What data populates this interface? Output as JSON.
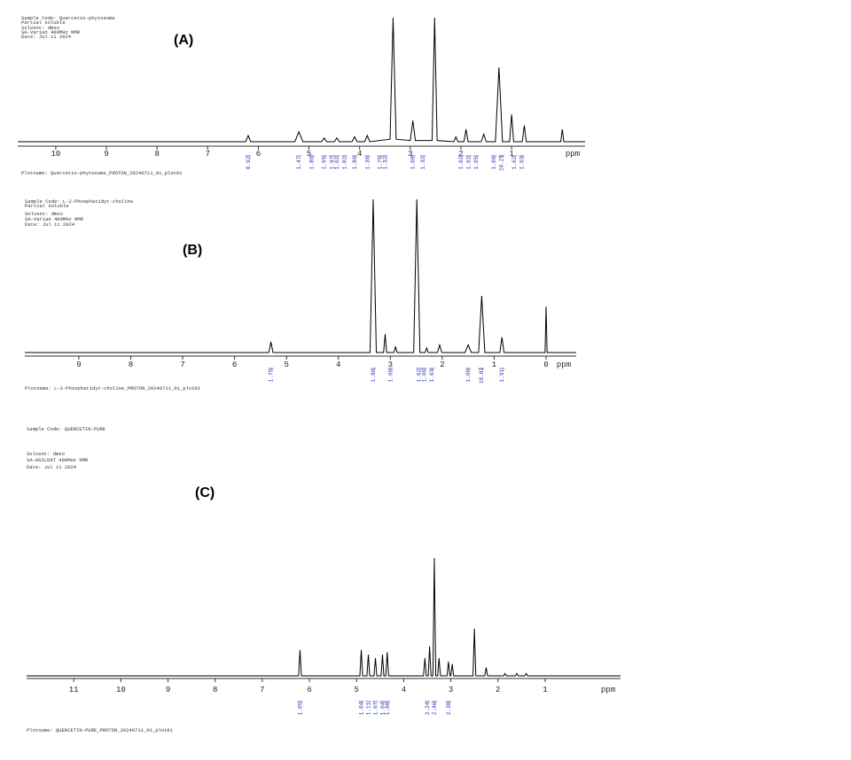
{
  "chart_data": [
    {
      "type": "line",
      "title": "(A)",
      "header": [
        "Sample Code: Quercetin-phytosome",
        "Partial soluble",
        "Solvent: dmso",
        "SA-Varian 400MHz NMR",
        "Date: Jul 11 2024"
      ],
      "footer": "Plotname: Quercetin-phytosome_PROTON_20240711_01_plot01",
      "x_label": "ppm",
      "color": "#000000",
      "xlim": [
        10.75,
        -0.45
      ],
      "ylim": [
        0,
        100
      ],
      "xticks": [
        10,
        9,
        8,
        7,
        6,
        5,
        4,
        3,
        2,
        1
      ],
      "x": [
        10.75,
        6.25,
        6.2,
        6.15,
        5.28,
        5.2,
        5.12,
        4.75,
        4.7,
        4.65,
        4.5,
        4.45,
        4.4,
        4.15,
        4.1,
        4.05,
        3.9,
        3.85,
        3.8,
        3.4,
        3.34,
        3.28,
        3.0,
        2.95,
        2.9,
        2.57,
        2.52,
        2.47,
        2.14,
        2.1,
        2.06,
        1.94,
        1.9,
        1.86,
        1.6,
        1.55,
        1.5,
        1.32,
        1.25,
        1.18,
        1.04,
        1.0,
        0.96,
        0.79,
        0.75,
        0.71,
        0.03,
        0,
        -0.03,
        -0.45
      ],
      "values": [
        0,
        0,
        5,
        0,
        0,
        8,
        0,
        0,
        3,
        0,
        0,
        3,
        0,
        0,
        4,
        0,
        0,
        5,
        0,
        2,
        100,
        2,
        1,
        17,
        1,
        1,
        100,
        1,
        0,
        4,
        0,
        0,
        10,
        0,
        0,
        6,
        0,
        0,
        60,
        0,
        0,
        22,
        0,
        0,
        13,
        0,
        0,
        10,
        0,
        0
      ],
      "integrals": [
        {
          "x": 6.2,
          "label": "0.92"
        },
        {
          "x": 5.2,
          "label": "1.47"
        },
        {
          "x": 4.95,
          "label": "1.86"
        },
        {
          "x": 4.7,
          "label": "1.95"
        },
        {
          "x": 4.55,
          "label": "1.97"
        },
        {
          "x": 4.45,
          "label": "1.02"
        },
        {
          "x": 4.3,
          "label": "1.02"
        },
        {
          "x": 4.1,
          "label": "1.86"
        },
        {
          "x": 3.85,
          "label": "1.36"
        },
        {
          "x": 3.6,
          "label": "1.75"
        },
        {
          "x": 3.5,
          "label": "1.32"
        },
        {
          "x": 2.95,
          "label": "1.00"
        },
        {
          "x": 2.75,
          "label": "1.32"
        },
        {
          "x": 2.0,
          "label": "1.02"
        },
        {
          "x": 1.85,
          "label": "1.02"
        },
        {
          "x": 1.7,
          "label": "1.05"
        },
        {
          "x": 1.35,
          "label": "1.00"
        },
        {
          "x": 1.2,
          "label": "10.25"
        },
        {
          "x": 0.95,
          "label": "1.62"
        },
        {
          "x": 0.8,
          "label": "1.03"
        }
      ]
    },
    {
      "type": "line",
      "title": "(B)",
      "header": [
        "Sample Code: L-2-Phosphatidyt-choline",
        "Partial soluble",
        "Solvent: dmso",
        "SA-Varian 400MHz NMR",
        "Date: Jul 11 2024"
      ],
      "footer": "Plotname: L-2-Phosphatidyt-choline_PROTON_20240711_01_plot01",
      "x_label": "ppm",
      "color": "#000000",
      "xlim": [
        10.04,
        -0.58
      ],
      "ylim": [
        0,
        100
      ],
      "xticks": [
        9,
        8,
        7,
        6,
        5,
        4,
        3,
        2,
        1,
        0
      ],
      "x": [
        10.04,
        5.34,
        5.3,
        5.26,
        3.39,
        3.33,
        3.27,
        3.13,
        3.1,
        3.07,
        2.93,
        2.9,
        2.87,
        2.55,
        2.49,
        2.43,
        2.33,
        2.3,
        2.27,
        2.09,
        2.05,
        2.01,
        1.56,
        1.5,
        1.44,
        1.3,
        1.24,
        1.18,
        0.89,
        0.85,
        0.81,
        0.02,
        0,
        -0.02,
        -0.58
      ],
      "values": [
        0,
        0,
        7,
        0,
        0,
        100,
        0,
        0,
        12,
        0,
        0,
        4,
        0,
        0,
        100,
        0,
        0,
        3,
        0,
        0,
        5,
        0,
        0,
        5,
        0,
        0,
        37,
        0,
        0,
        10,
        0,
        0,
        30,
        0,
        0
      ],
      "integrals": [
        {
          "x": 5.3,
          "label": "1.75"
        },
        {
          "x": 3.33,
          "label": "1.86"
        },
        {
          "x": 3.0,
          "label": "1.00"
        },
        {
          "x": 2.45,
          "label": "1.02"
        },
        {
          "x": 2.35,
          "label": "1.06"
        },
        {
          "x": 2.2,
          "label": "1.03"
        },
        {
          "x": 1.5,
          "label": "1.00"
        },
        {
          "x": 1.25,
          "label": "10.82"
        },
        {
          "x": 0.85,
          "label": "1.91"
        }
      ]
    },
    {
      "type": "line",
      "title": "(C)",
      "header": [
        "Sample Code: QUERCETIN-PURE",
        "Solvent: dmso",
        "SA-AGILENT 400MHz NMR",
        "Date: Jul 11 2024"
      ],
      "footer": "Plotname: QUERCETIN-PURE_PROTON_20240711_01_plot01",
      "x_label": "ppm",
      "color": "#000000",
      "xlim": [
        12.0,
        -0.6
      ],
      "ylim": [
        0,
        100
      ],
      "xticks": [
        11,
        10,
        9,
        8,
        7,
        6,
        5,
        4,
        3,
        2,
        1
      ],
      "x": [
        12.0,
        6.23,
        6.2,
        6.17,
        4.93,
        4.9,
        4.87,
        4.78,
        4.75,
        4.72,
        4.63,
        4.6,
        4.57,
        4.48,
        4.45,
        4.42,
        4.38,
        4.35,
        4.32,
        3.58,
        3.55,
        3.52,
        3.48,
        3.45,
        3.42,
        3.38,
        3.35,
        3.32,
        3.28,
        3.25,
        3.22,
        3.08,
        3.05,
        3.02,
        3.0,
        2.97,
        2.94,
        2.53,
        2.5,
        2.47,
        2.28,
        2.25,
        2.22,
        1.88,
        1.85,
        1.82,
        1.63,
        1.6,
        1.57,
        1.43,
        1.4,
        1.37,
        -0.6
      ],
      "values": [
        0,
        0,
        22,
        0,
        0,
        22,
        0,
        0,
        18,
        0,
        0,
        15,
        0,
        0,
        18,
        0,
        0,
        20,
        0,
        0,
        15,
        0,
        0,
        25,
        0,
        0,
        100,
        0,
        0,
        15,
        0,
        0,
        12,
        0,
        0,
        10,
        0,
        0,
        40,
        0,
        0,
        7,
        0,
        0,
        2,
        0,
        0,
        2,
        0,
        0,
        2,
        0,
        0
      ],
      "integrals": [
        {
          "x": 6.2,
          "label": "1.05"
        },
        {
          "x": 4.9,
          "label": "1.04"
        },
        {
          "x": 4.75,
          "label": "1.11"
        },
        {
          "x": 4.6,
          "label": "1.07"
        },
        {
          "x": 4.45,
          "label": "1.04"
        },
        {
          "x": 4.35,
          "label": "1.08"
        },
        {
          "x": 3.5,
          "label": "2.24"
        },
        {
          "x": 3.35,
          "label": "2.46"
        },
        {
          "x": 3.05,
          "label": "2.38"
        }
      ]
    }
  ]
}
